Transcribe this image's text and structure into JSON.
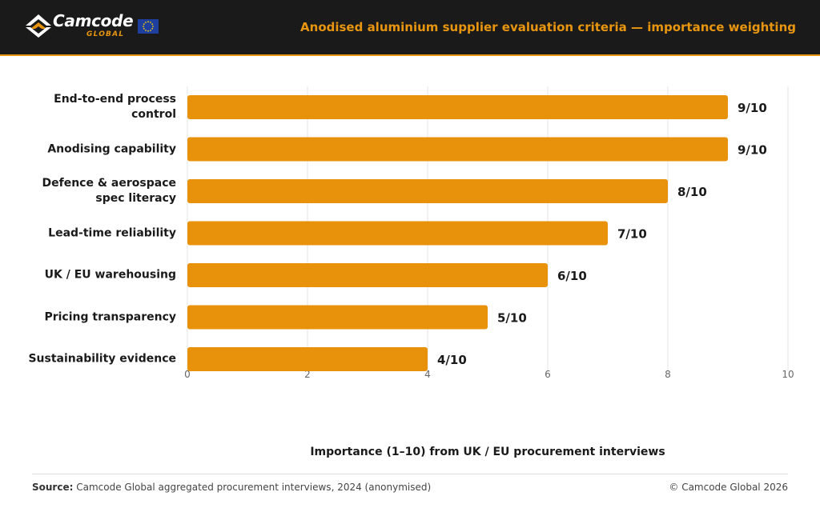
{
  "header": {
    "brand": "Camcode",
    "brand_sub": "GLOBAL",
    "title": "Anodised aluminium supplier evaluation criteria — importance weighting"
  },
  "chart_data": {
    "type": "bar",
    "orientation": "horizontal",
    "categories": [
      "End-to-end process control",
      "Anodising capability",
      "Defence & aerospace spec literacy",
      "Lead-time reliability",
      "UK / EU warehousing",
      "Pricing transparency",
      "Sustainability evidence"
    ],
    "values": [
      9,
      9,
      8,
      7,
      6,
      5,
      4
    ],
    "data_labels": [
      "9/10",
      "9/10",
      "8/10",
      "7/10",
      "6/10",
      "5/10",
      "4/10"
    ],
    "xlabel": "Importance (1–10) from UK / EU procurement interviews",
    "xlim": [
      0,
      10
    ],
    "xticks": [
      0,
      2,
      4,
      6,
      8,
      10
    ],
    "grid": true,
    "bar_color": "#e8920c"
  },
  "footer": {
    "source_label": "Source:",
    "source_text": "Camcode Global aggregated procurement interviews, 2024 (anonymised)",
    "copyright": "© Camcode Global 2026"
  },
  "colors": {
    "header_bg": "#1a1a1a",
    "accent": "#e8960f",
    "eu_blue": "#1f3f9e",
    "eu_star": "#f5d000"
  },
  "icons": {
    "logo": "camcode-chevron-logo-icon",
    "flag": "eu-flag-icon"
  }
}
